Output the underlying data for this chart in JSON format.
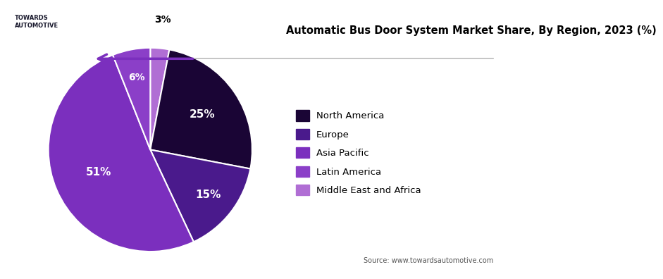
{
  "title": "Automatic Bus Door System Market Share, By Region, 2023 (%)",
  "labels": [
    "North America",
    "Europe",
    "Asia Pacific",
    "Latin America",
    "Middle East and Africa"
  ],
  "values": [
    25,
    15,
    51,
    6,
    3
  ],
  "colors": [
    "#1a0535",
    "#4a1a8c",
    "#7b2fbe",
    "#8b3fc8",
    "#b06ed4"
  ],
  "source_text": "Source: www.towardsautomotive.com",
  "background_color": "#ffffff",
  "arrow_color": "#7b2fbe",
  "line_color": "#cccccc",
  "pct_positions": [
    {
      "label": "25%",
      "r": 0.62,
      "color": "white",
      "fontsize": 11
    },
    {
      "label": "15%",
      "r": 0.72,
      "color": "white",
      "fontsize": 11
    },
    {
      "label": "51%",
      "r": 0.6,
      "color": "white",
      "fontsize": 11
    },
    {
      "label": "6%",
      "r": 0.75,
      "color": "white",
      "fontsize": 10
    },
    {
      "label": "3%",
      "r": 1.3,
      "color": "black",
      "fontsize": 10
    }
  ]
}
